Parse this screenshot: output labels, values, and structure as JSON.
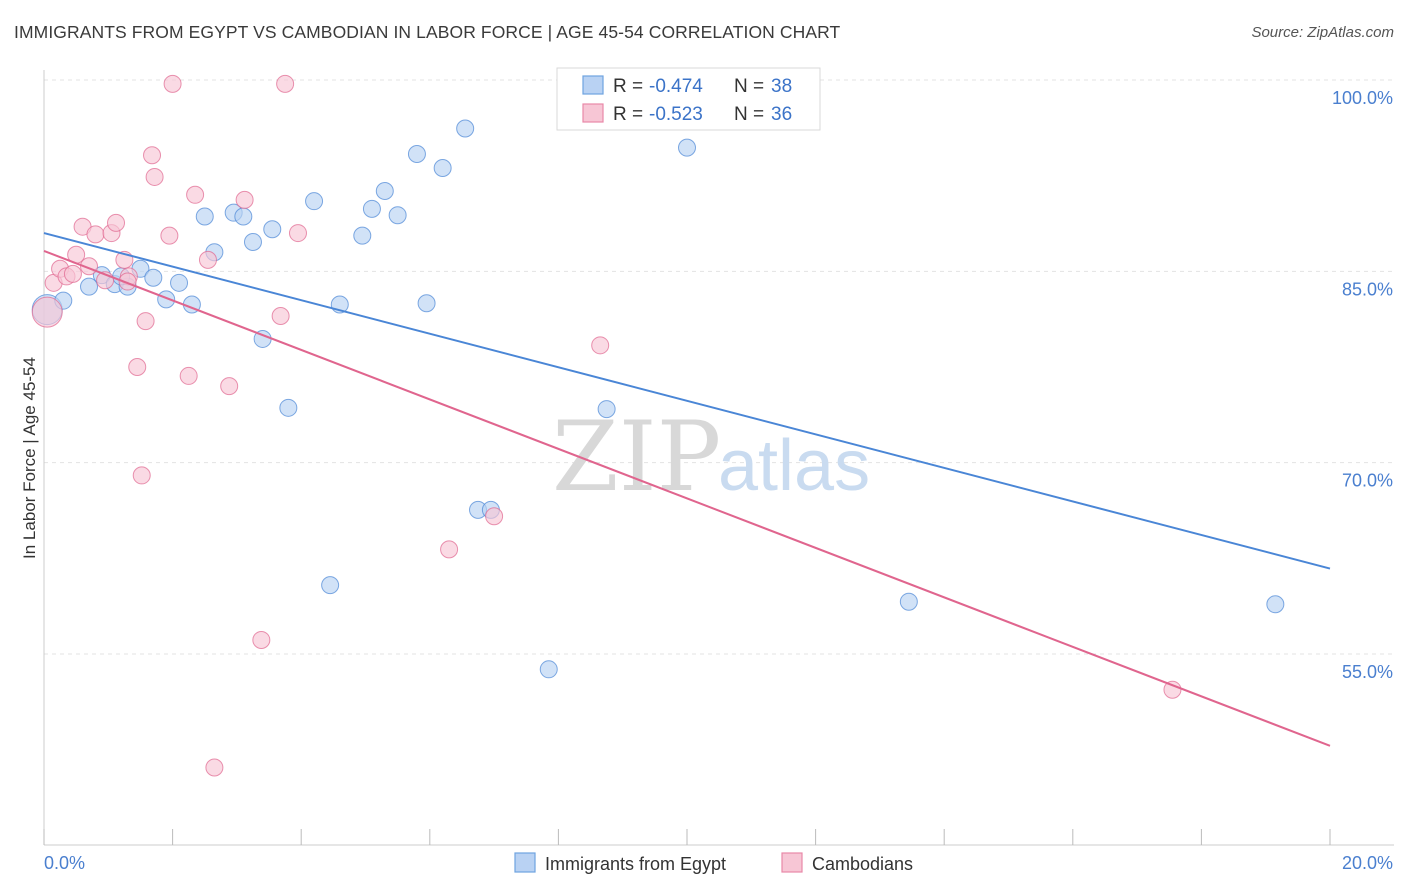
{
  "header": {
    "title": "IMMIGRANTS FROM EGYPT VS CAMBODIAN IN LABOR FORCE | AGE 45-54 CORRELATION CHART",
    "source": "Source: ZipAtlas.com"
  },
  "watermark": {
    "zip": "ZIP",
    "atlas": "atlas"
  },
  "legend": {
    "rows": [
      {
        "r_label": "R =",
        "r_value": "-0.474",
        "n_label": "N =",
        "n_value": "38",
        "color": "#6fa3e0",
        "fill": "#b9d2f3"
      },
      {
        "r_label": "R =",
        "r_value": "-0.523",
        "n_label": "N =",
        "n_value": "36",
        "color": "#e889a8",
        "fill": "#f7c6d5"
      }
    ]
  },
  "chart_data": {
    "type": "scatter",
    "title": "IMMIGRANTS FROM EGYPT VS CAMBODIAN IN LABOR FORCE | AGE 45-54 CORRELATION CHART",
    "xlabel": "",
    "ylabel": "In Labor Force | Age 45-54",
    "xlim": [
      0,
      20
    ],
    "ylim": [
      40,
      102
    ],
    "x_tick_labels": [
      "0.0%",
      "20.0%"
    ],
    "y_ticks": [
      55,
      70,
      85,
      100
    ],
    "y_tick_labels": [
      "55.0%",
      "70.0%",
      "85.0%",
      "100.0%"
    ],
    "series": [
      {
        "name": "Immigrants from Egypt",
        "color": "#4a86d6",
        "fill": "#b9d2f3",
        "trend": {
          "x": [
            0,
            20
          ],
          "y": [
            88.0,
            61.7
          ]
        },
        "points": [
          {
            "x": 0.05,
            "y": 82.0,
            "big": true
          },
          {
            "x": 0.3,
            "y": 82.7
          },
          {
            "x": 0.7,
            "y": 83.8
          },
          {
            "x": 0.9,
            "y": 84.7
          },
          {
            "x": 1.1,
            "y": 84.0
          },
          {
            "x": 1.3,
            "y": 83.8
          },
          {
            "x": 1.5,
            "y": 85.2
          },
          {
            "x": 1.7,
            "y": 84.5
          },
          {
            "x": 1.9,
            "y": 82.8
          },
          {
            "x": 2.1,
            "y": 84.1
          },
          {
            "x": 2.3,
            "y": 82.4
          },
          {
            "x": 2.5,
            "y": 89.3
          },
          {
            "x": 2.65,
            "y": 86.5
          },
          {
            "x": 2.95,
            "y": 89.6
          },
          {
            "x": 3.1,
            "y": 89.3
          },
          {
            "x": 3.25,
            "y": 87.3
          },
          {
            "x": 3.4,
            "y": 79.7
          },
          {
            "x": 3.55,
            "y": 88.3
          },
          {
            "x": 3.8,
            "y": 74.3
          },
          {
            "x": 4.2,
            "y": 90.5
          },
          {
            "x": 4.45,
            "y": 60.4
          },
          {
            "x": 4.6,
            "y": 82.4
          },
          {
            "x": 4.95,
            "y": 87.8
          },
          {
            "x": 5.1,
            "y": 89.9
          },
          {
            "x": 5.3,
            "y": 91.3
          },
          {
            "x": 5.5,
            "y": 89.4
          },
          {
            "x": 5.8,
            "y": 94.2
          },
          {
            "x": 5.95,
            "y": 82.5
          },
          {
            "x": 6.2,
            "y": 93.1
          },
          {
            "x": 6.55,
            "y": 96.2
          },
          {
            "x": 6.75,
            "y": 66.3
          },
          {
            "x": 6.95,
            "y": 66.3
          },
          {
            "x": 7.85,
            "y": 53.8
          },
          {
            "x": 8.75,
            "y": 74.2
          },
          {
            "x": 10.0,
            "y": 94.7
          },
          {
            "x": 13.45,
            "y": 59.1
          },
          {
            "x": 19.15,
            "y": 58.9
          },
          {
            "x": 1.2,
            "y": 84.6
          }
        ]
      },
      {
        "name": "Cambodians",
        "color": "#e0658e",
        "fill": "#f7c6d5",
        "trend": {
          "x": [
            0,
            20
          ],
          "y": [
            86.6,
            47.8
          ]
        },
        "points": [
          {
            "x": 0.05,
            "y": 81.8,
            "big": true
          },
          {
            "x": 0.15,
            "y": 84.1
          },
          {
            "x": 0.25,
            "y": 85.2
          },
          {
            "x": 0.35,
            "y": 84.6
          },
          {
            "x": 0.5,
            "y": 86.3
          },
          {
            "x": 0.6,
            "y": 88.5
          },
          {
            "x": 0.7,
            "y": 85.4
          },
          {
            "x": 0.8,
            "y": 87.9
          },
          {
            "x": 0.95,
            "y": 84.3
          },
          {
            "x": 1.05,
            "y": 88.0
          },
          {
            "x": 1.12,
            "y": 88.8
          },
          {
            "x": 1.25,
            "y": 85.9
          },
          {
            "x": 1.32,
            "y": 84.6
          },
          {
            "x": 1.45,
            "y": 77.5
          },
          {
            "x": 1.52,
            "y": 69.0
          },
          {
            "x": 1.58,
            "y": 81.1
          },
          {
            "x": 1.68,
            "y": 94.1
          },
          {
            "x": 1.72,
            "y": 92.4
          },
          {
            "x": 1.95,
            "y": 87.8
          },
          {
            "x": 2.0,
            "y": 99.7
          },
          {
            "x": 2.25,
            "y": 76.8
          },
          {
            "x": 2.35,
            "y": 91.0
          },
          {
            "x": 2.55,
            "y": 85.9
          },
          {
            "x": 2.65,
            "y": 46.1
          },
          {
            "x": 2.88,
            "y": 76.0
          },
          {
            "x": 3.12,
            "y": 90.6
          },
          {
            "x": 3.38,
            "y": 56.1
          },
          {
            "x": 3.68,
            "y": 81.5
          },
          {
            "x": 3.75,
            "y": 99.7
          },
          {
            "x": 3.95,
            "y": 88.0
          },
          {
            "x": 6.3,
            "y": 63.2
          },
          {
            "x": 7.0,
            "y": 65.8
          },
          {
            "x": 8.65,
            "y": 79.2
          },
          {
            "x": 17.55,
            "y": 52.2
          },
          {
            "x": 1.3,
            "y": 84.2
          },
          {
            "x": 0.45,
            "y": 84.8
          }
        ]
      }
    ]
  }
}
